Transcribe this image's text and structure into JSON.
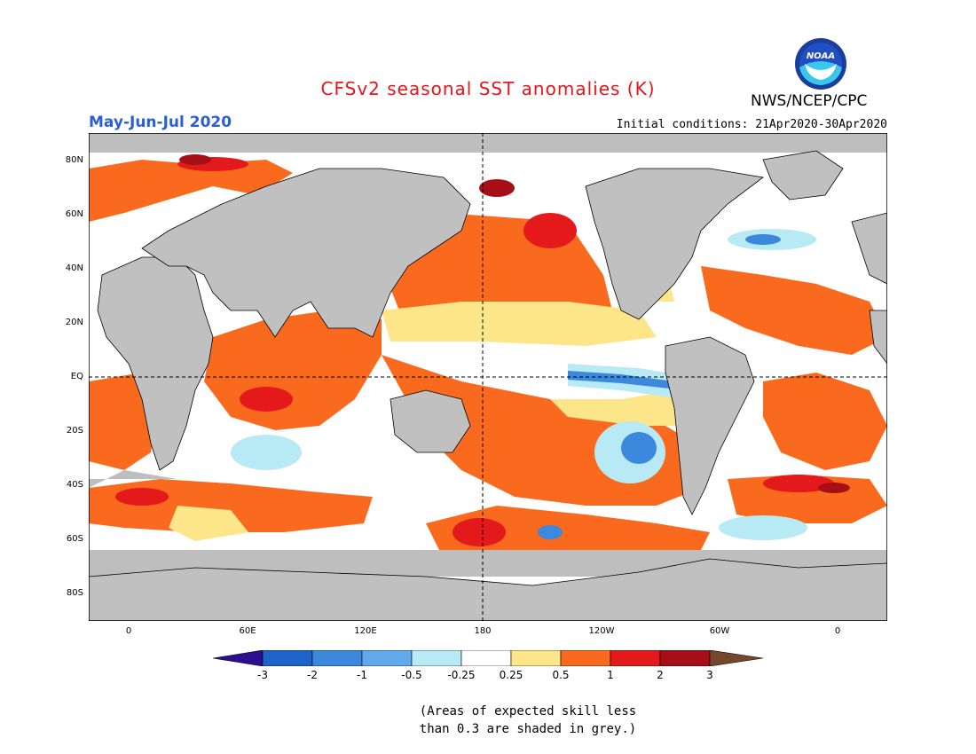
{
  "header": {
    "title": "CFSv2 seasonal SST anomalies (K)",
    "agency": "NWS/NCEP/CPC",
    "period": "May-Jun-Jul 2020",
    "initial_conditions": "Initial conditions: 21Apr2020-30Apr2020",
    "logo_text": "NOAA"
  },
  "colors": {
    "title": "#e8131b",
    "period": "#2a5fd8",
    "land": "#c0c0c0",
    "skill_grey": "#bebebe"
  },
  "map": {
    "lat_labels": [
      "80N",
      "60N",
      "40N",
      "20N",
      "EQ",
      "20S",
      "40S",
      "60S",
      "80S"
    ],
    "lon_labels": [
      "0",
      "60E",
      "120E",
      "180",
      "120W",
      "60W",
      "0"
    ]
  },
  "colorbar": {
    "labels": [
      "-3",
      "-2",
      "-1",
      "-0.5",
      "-0.25",
      "0.25",
      "0.5",
      "1",
      "2",
      "3"
    ],
    "bins": [
      "#2b0f8e",
      "#1e63c9",
      "#3b88dd",
      "#62a9ec",
      "#b7eaf5",
      "#ffffff",
      "#fde68a",
      "#fa6a1e",
      "#e4191b",
      "#a50f15",
      "#75482b"
    ]
  },
  "note": {
    "line1": "(Areas of expected skill less",
    "line2": "than 0.3 are shaded in grey.)"
  }
}
